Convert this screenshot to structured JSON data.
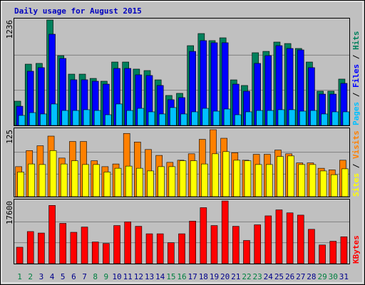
{
  "chart_data": [
    {
      "type": "bar",
      "title": "Daily usage for August 2015",
      "legend_separator": "/",
      "categories": [
        "1",
        "2",
        "3",
        "4",
        "5",
        "6",
        "7",
        "8",
        "9",
        "10",
        "11",
        "12",
        "13",
        "14",
        "15",
        "16",
        "17",
        "18",
        "19",
        "20",
        "21",
        "22",
        "23",
        "24",
        "25",
        "26",
        "27",
        "28",
        "29",
        "30",
        "31"
      ],
      "category_colors": [
        "#008040",
        "#008040",
        "#00008b",
        "#00008b",
        "#00008b",
        "#00008b",
        "#00008b",
        "#008040",
        "#008040",
        "#00008b",
        "#00008b",
        "#00008b",
        "#00008b",
        "#00008b",
        "#008040",
        "#008040",
        "#00008b",
        "#00008b",
        "#00008b",
        "#00008b",
        "#00008b",
        "#008040",
        "#008040",
        "#00008b",
        "#00008b",
        "#00008b",
        "#00008b",
        "#00008b",
        "#008040",
        "#008040",
        "#00008b"
      ],
      "ylim": [
        0,
        1236
      ],
      "yticks": [
        1236
      ],
      "grid_values": [
        412,
        824
      ],
      "series": [
        {
          "name": "Hits",
          "color": "#00805c",
          "values": [
            284,
            718,
            727,
            1236,
            818,
            601,
            601,
            551,
            518,
            743,
            743,
            660,
            643,
            534,
            351,
            376,
            935,
            1077,
            994,
            1027,
            534,
            468,
            852,
            868,
            977,
            960,
            902,
            743,
            401,
            401,
            543
          ]
        },
        {
          "name": "Files",
          "color": "#0000ff",
          "values": [
            225,
            635,
            677,
            1069,
            785,
            535,
            535,
            518,
            484,
            668,
            668,
            593,
            585,
            468,
            301,
            326,
            868,
            994,
            969,
            969,
            484,
            401,
            727,
            818,
            935,
            902,
            885,
            677,
            367,
            367,
            493
          ]
        },
        {
          "name": "Pages",
          "color": "#00c0ff",
          "values": [
            117,
            150,
            134,
            251,
            175,
            175,
            184,
            175,
            125,
            251,
            175,
            200,
            159,
            134,
            209,
            134,
            159,
            200,
            167,
            192,
            125,
            159,
            175,
            175,
            184,
            184,
            167,
            175,
            134,
            159,
            159
          ]
        }
      ]
    },
    {
      "type": "bar",
      "ylim": [
        0,
        125
      ],
      "yticks": [
        125
      ],
      "grid_values": [
        42,
        83
      ],
      "series": [
        {
          "name": "Visits",
          "color": "#ff8000",
          "values": [
            56,
            86,
            95,
            113,
            72,
            103,
            103,
            67,
            56,
            61,
            118,
            102,
            88,
            77,
            64,
            68,
            80,
            107,
            125,
            109,
            82,
            68,
            79,
            79,
            87,
            80,
            63,
            63,
            53,
            50,
            68
          ]
        },
        {
          "name": "Sites",
          "color": "#ffff00",
          "values": [
            46,
            61,
            60,
            86,
            61,
            67,
            60,
            60,
            46,
            53,
            57,
            53,
            48,
            56,
            56,
            67,
            67,
            61,
            80,
            84,
            68,
            67,
            60,
            60,
            75,
            76,
            60,
            60,
            48,
            41,
            52
          ]
        }
      ]
    },
    {
      "type": "bar",
      "ylim": [
        0,
        17600
      ],
      "yticks": [
        17600
      ],
      "grid_values": [
        5867,
        11733
      ],
      "series": [
        {
          "name": "KBytes",
          "color": "#ff0000",
          "values": [
            4610,
            9010,
            8590,
            16340,
            11310,
            8800,
            10270,
            6080,
            5660,
            10690,
            11730,
            10480,
            8380,
            8380,
            5870,
            8380,
            11940,
            15710,
            10690,
            17600,
            10480,
            6500,
            10900,
            13410,
            15090,
            14250,
            13620,
            9640,
            5240,
            6290,
            7540
          ]
        }
      ]
    }
  ]
}
